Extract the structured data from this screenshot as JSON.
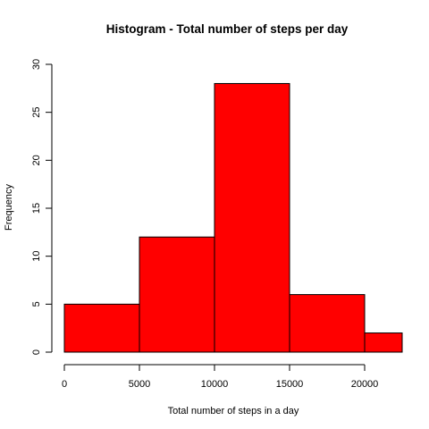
{
  "chart_data": {
    "type": "bar",
    "title": "Histogram - Total number of steps per day",
    "xlabel": "Total number of steps in a day",
    "ylabel": "Frequency",
    "bins": [
      {
        "from": 0,
        "to": 5000,
        "value": 5
      },
      {
        "from": 5000,
        "to": 10000,
        "value": 12
      },
      {
        "from": 10000,
        "to": 15000,
        "value": 28
      },
      {
        "from": 15000,
        "to": 20000,
        "value": 6
      },
      {
        "from": 20000,
        "to": 22500,
        "value": 2
      }
    ],
    "xlim": [
      0,
      22500
    ],
    "ylim": [
      0,
      30
    ],
    "xticks": [
      {
        "value": 0,
        "label": "0"
      },
      {
        "value": 5000,
        "label": "5000"
      },
      {
        "value": 10000,
        "label": "10000"
      },
      {
        "value": 15000,
        "label": "15000"
      },
      {
        "value": 20000,
        "label": "20000"
      }
    ],
    "yticks": [
      {
        "value": 0,
        "label": "0"
      },
      {
        "value": 5,
        "label": "5"
      },
      {
        "value": 10,
        "label": "10"
      },
      {
        "value": 15,
        "label": "15"
      },
      {
        "value": 20,
        "label": "20"
      },
      {
        "value": 25,
        "label": "25"
      },
      {
        "value": 30,
        "label": "30"
      }
    ],
    "bar_color": "#ff0000",
    "border_color": "#000000",
    "grid": false,
    "legend": "none"
  }
}
